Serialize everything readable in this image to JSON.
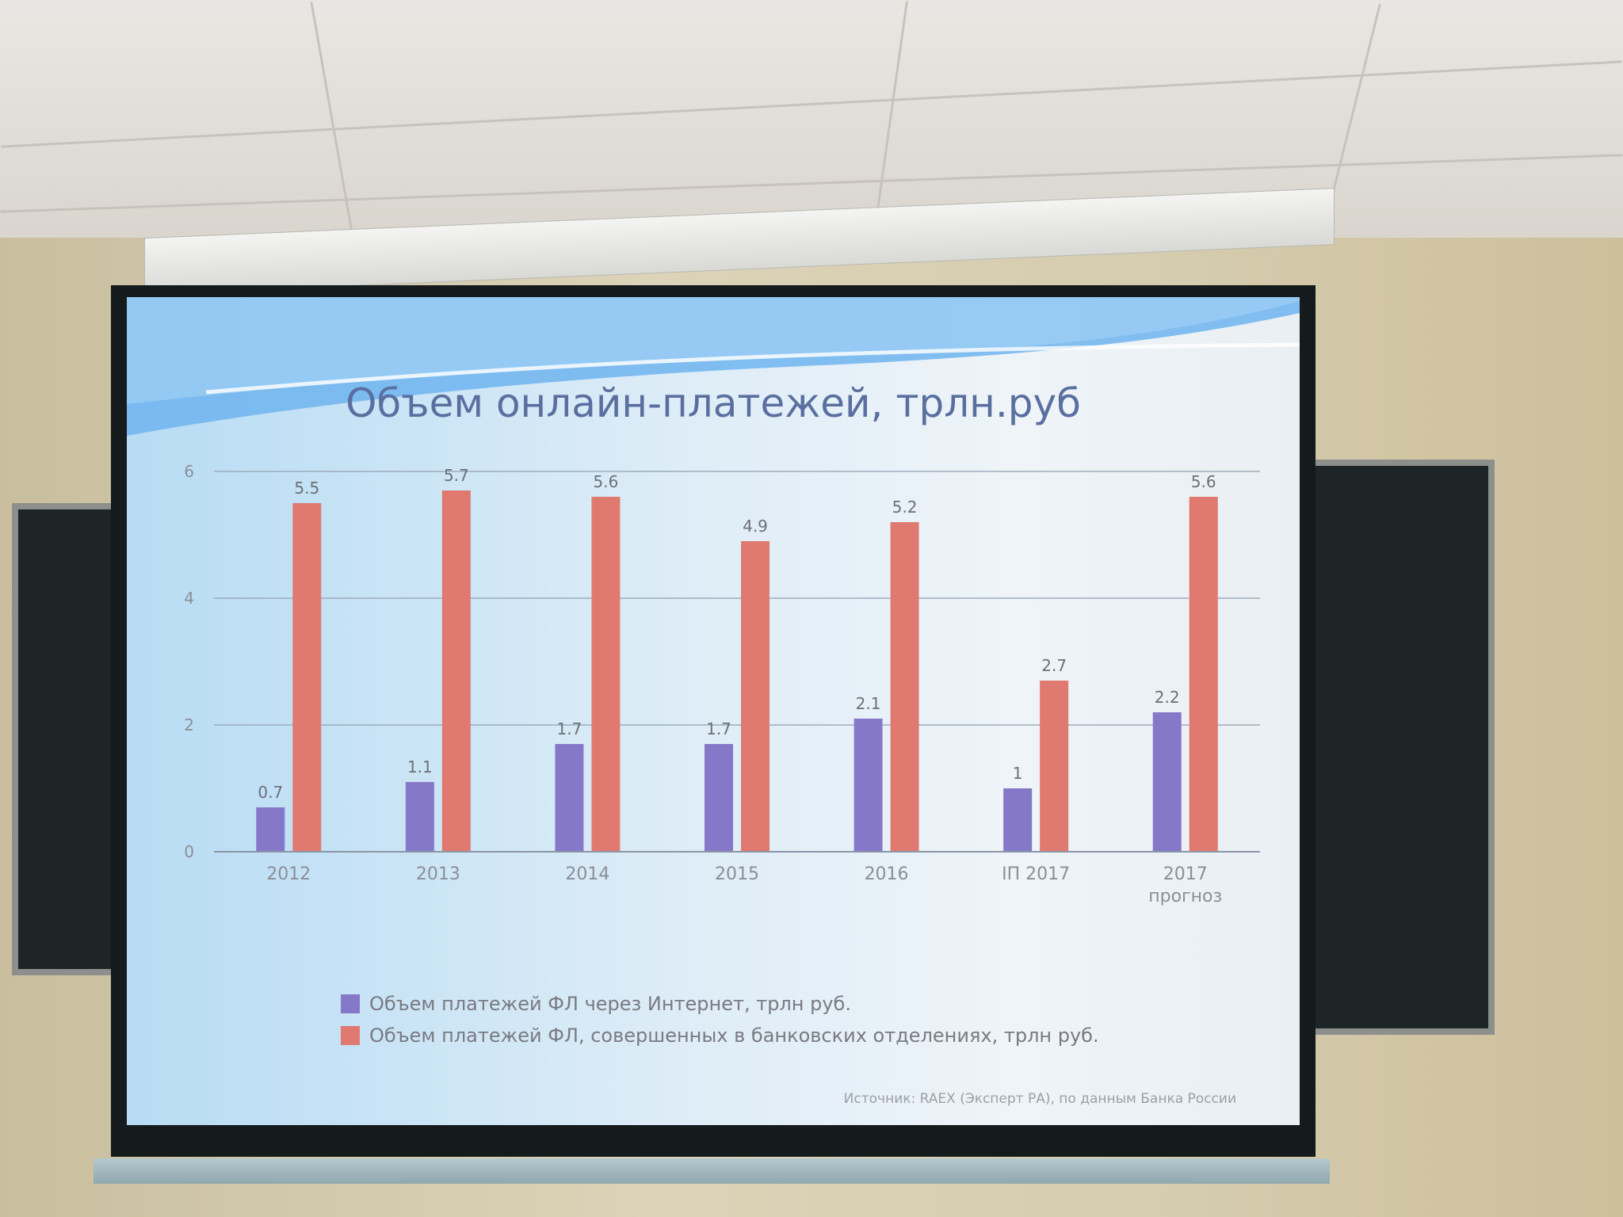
{
  "slide": {
    "title": "Объем онлайн-платежей, трлн.руб",
    "source": "Источник: RAEX (Эксперт РА), по данным Банка России"
  },
  "chart_data": {
    "type": "bar",
    "categories": [
      "2012",
      "2013",
      "2014",
      "2015",
      "2016",
      "IП 2017",
      "2017\nпрогноз"
    ],
    "series": [
      {
        "name": "Объем платежей ФЛ через Интернет, трлн руб.",
        "color": "#8678c8",
        "values": [
          0.7,
          1.1,
          1.7,
          1.7,
          2.1,
          1,
          2.2
        ]
      },
      {
        "name": "Объем платежей ФЛ, совершенных в банковских отделениях, трлн руб.",
        "color": "#e07a70",
        "values": [
          5.5,
          5.7,
          5.6,
          4.9,
          5.2,
          2.7,
          5.6
        ]
      }
    ],
    "yticks": [
      0,
      2,
      4,
      6
    ],
    "ylim": [
      0,
      6
    ],
    "grid": true,
    "legend": "bottom-left"
  }
}
